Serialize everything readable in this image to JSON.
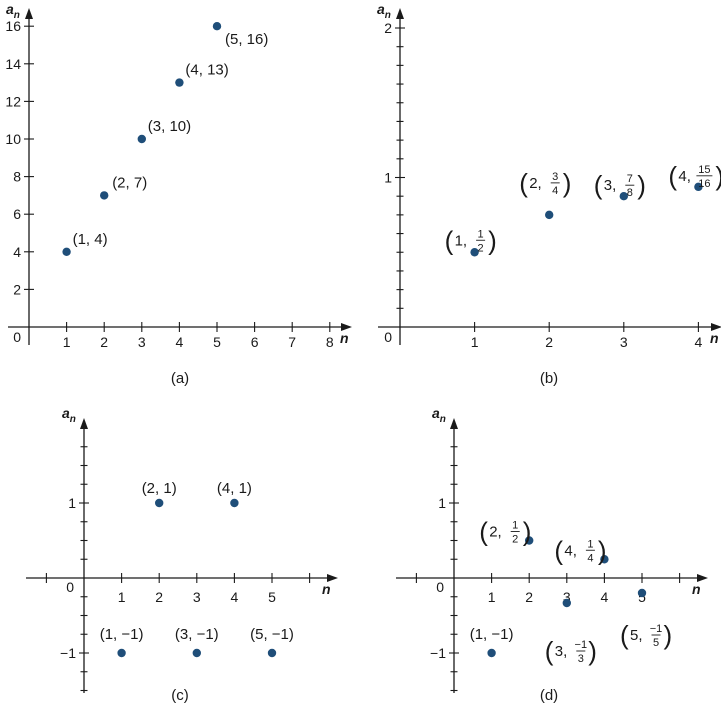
{
  "chart_data": [
    {
      "type": "scatter",
      "panel_label": "(a)",
      "xlabel": "n",
      "ylabel": "a_n",
      "xlim": [
        0,
        8
      ],
      "ylim": [
        0,
        16
      ],
      "x_ticks": [
        "1",
        "2",
        "3",
        "4",
        "5",
        "6",
        "7",
        "8"
      ],
      "y_ticks": [
        "2",
        "4",
        "6",
        "8",
        "10",
        "12",
        "14",
        "16"
      ],
      "origin_label": "0",
      "points": [
        {
          "x": 1,
          "y": 4,
          "label": "(1, 4)"
        },
        {
          "x": 2,
          "y": 7,
          "label": "(2, 7)"
        },
        {
          "x": 3,
          "y": 10,
          "label": "(3, 10)"
        },
        {
          "x": 4,
          "y": 13,
          "label": "(4, 13)"
        },
        {
          "x": 5,
          "y": 16,
          "label": "(5, 16)"
        }
      ],
      "point_color": "#1f4e79"
    },
    {
      "type": "scatter",
      "panel_label": "(b)",
      "xlabel": "n",
      "ylabel": "a_n",
      "xlim": [
        0,
        4
      ],
      "ylim": [
        0,
        2
      ],
      "x_ticks": [
        "1",
        "2",
        "3",
        "4"
      ],
      "y_ticks": [
        "1",
        "2"
      ],
      "origin_label": "0",
      "points": [
        {
          "x": 1,
          "y": 0.5,
          "label_x": "1",
          "label_num": "1",
          "label_den": "2"
        },
        {
          "x": 2,
          "y": 0.75,
          "label_x": "2",
          "label_num": "3",
          "label_den": "4"
        },
        {
          "x": 3,
          "y": 0.875,
          "label_x": "3",
          "label_num": "7",
          "label_den": "8"
        },
        {
          "x": 4,
          "y": 0.9375,
          "label_x": "4",
          "label_num": "15",
          "label_den": "16"
        }
      ],
      "point_color": "#1f4e79"
    },
    {
      "type": "scatter",
      "panel_label": "(c)",
      "xlabel": "n",
      "ylabel": "a_n",
      "xlim": [
        0,
        5
      ],
      "ylim": [
        -1,
        1
      ],
      "x_ticks": [
        "1",
        "2",
        "3",
        "4",
        "5"
      ],
      "y_ticks": [
        "−1",
        "1"
      ],
      "origin_label": "0",
      "points": [
        {
          "x": 1,
          "y": -1,
          "label": "(1, −1)"
        },
        {
          "x": 2,
          "y": 1,
          "label": "(2, 1)"
        },
        {
          "x": 3,
          "y": -1,
          "label": "(3, −1)"
        },
        {
          "x": 4,
          "y": 1,
          "label": "(4, 1)"
        },
        {
          "x": 5,
          "y": -1,
          "label": "(5, −1)"
        }
      ],
      "point_color": "#1f4e79"
    },
    {
      "type": "scatter",
      "panel_label": "(d)",
      "xlabel": "n",
      "ylabel": "a_n",
      "xlim": [
        0,
        5
      ],
      "ylim": [
        -1,
        1
      ],
      "x_ticks": [
        "1",
        "2",
        "3",
        "4",
        "5"
      ],
      "y_ticks": [
        "−1",
        "1"
      ],
      "origin_label": "0",
      "points": [
        {
          "x": 1,
          "y": -1,
          "label": "(1, −1)"
        },
        {
          "x": 2,
          "y": 0.5,
          "label_x": "2",
          "label_num": "1",
          "label_den": "2"
        },
        {
          "x": 3,
          "y": -0.3333,
          "label_x": "3",
          "label_num": "−1",
          "label_den": "3"
        },
        {
          "x": 4,
          "y": 0.25,
          "label_x": "4",
          "label_num": "1",
          "label_den": "4"
        },
        {
          "x": 5,
          "y": -0.2,
          "label_x": "5",
          "label_num": "−1",
          "label_den": "5"
        }
      ],
      "point_color": "#1f4e79"
    }
  ]
}
